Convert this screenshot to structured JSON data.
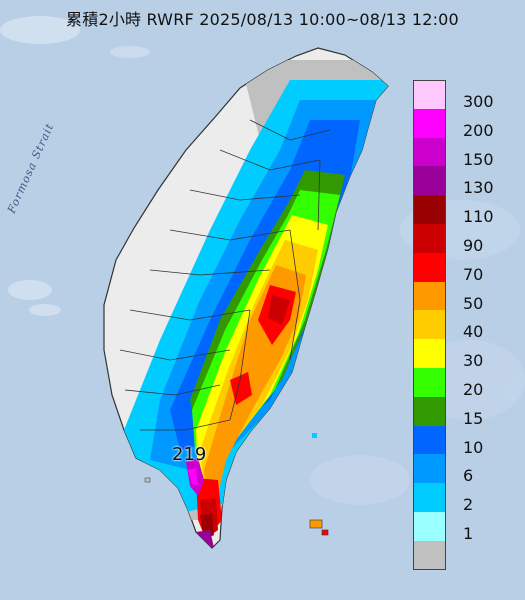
{
  "title": "累積2小時 RWRF 2025/08/13 10:00~08/13 12:00",
  "sea_label": "Formosa Strait",
  "max_value_label": "219",
  "legend": {
    "bins": [
      {
        "label": "300",
        "color": "#fec8fe"
      },
      {
        "label": "200",
        "color": "#fe00fe"
      },
      {
        "label": "150",
        "color": "#cc00cc"
      },
      {
        "label": "130",
        "color": "#990099"
      },
      {
        "label": "110",
        "color": "#990000"
      },
      {
        "label": "90",
        "color": "#cc0000"
      },
      {
        "label": "70",
        "color": "#ff0000"
      },
      {
        "label": "50",
        "color": "#ff9900"
      },
      {
        "label": "40",
        "color": "#ffcc00"
      },
      {
        "label": "30",
        "color": "#ffff00"
      },
      {
        "label": "20",
        "color": "#33ff00"
      },
      {
        "label": "15",
        "color": "#339900"
      },
      {
        "label": "10",
        "color": "#0066ff"
      },
      {
        "label": "6",
        "color": "#0099ff"
      },
      {
        "label": "2",
        "color": "#00ccff"
      },
      {
        "label": "1",
        "color": "#99ffff"
      },
      {
        "label": "",
        "color": "#c0c0c0"
      }
    ]
  },
  "colors": {
    "sea": "#b9cfe6",
    "land_no_rain": "#ececec",
    "land_trace": "#c0c0c0",
    "borders": "#333333"
  }
}
